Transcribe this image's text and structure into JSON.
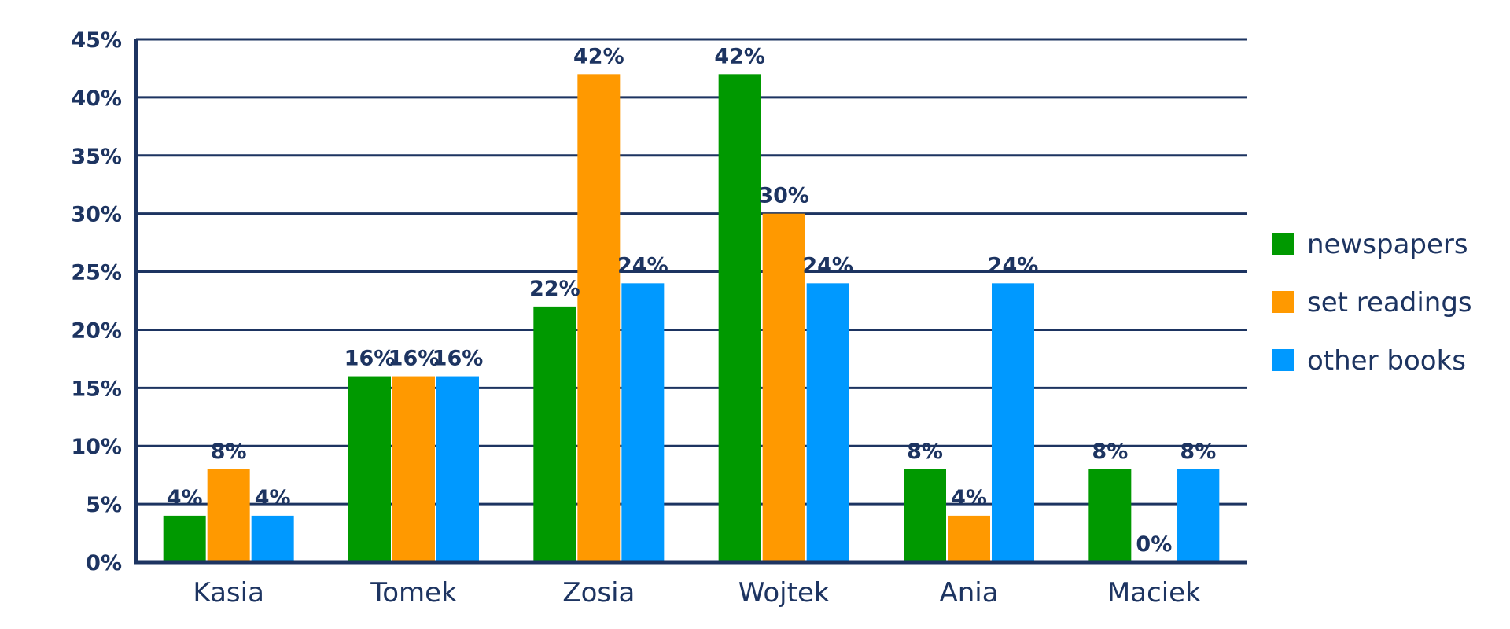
{
  "chart_data": {
    "type": "bar",
    "categories": [
      "Kasia",
      "Tomek",
      "Zosia",
      "Wojtek",
      "Ania",
      "Maciek"
    ],
    "series": [
      {
        "name": "newspapers",
        "color": "#009900",
        "values": [
          4,
          16,
          22,
          42,
          8,
          8
        ],
        "labels": [
          "4%",
          "16%",
          "22%",
          "42%",
          "8%",
          "8%"
        ]
      },
      {
        "name": "set readings",
        "color": "#ff9900",
        "values": [
          8,
          16,
          42,
          30,
          4,
          0
        ],
        "labels": [
          "8%",
          "16%",
          "42%",
          "30%",
          "4%",
          "0%"
        ]
      },
      {
        "name": "other books",
        "color": "#0099ff",
        "values": [
          4,
          16,
          24,
          24,
          24,
          8
        ],
        "labels": [
          "4%",
          "16%",
          "24%",
          "24%",
          "24%",
          "8%"
        ]
      }
    ],
    "ylim": [
      0,
      45
    ],
    "yticks": [
      0,
      5,
      10,
      15,
      20,
      25,
      30,
      35,
      40,
      45
    ],
    "ytick_labels": [
      "0%",
      "5%",
      "10%",
      "15%",
      "20%",
      "25%",
      "30%",
      "35%",
      "40%",
      "45%"
    ],
    "grid": true,
    "legend_position": "right",
    "axis_color": "#1d3461"
  }
}
